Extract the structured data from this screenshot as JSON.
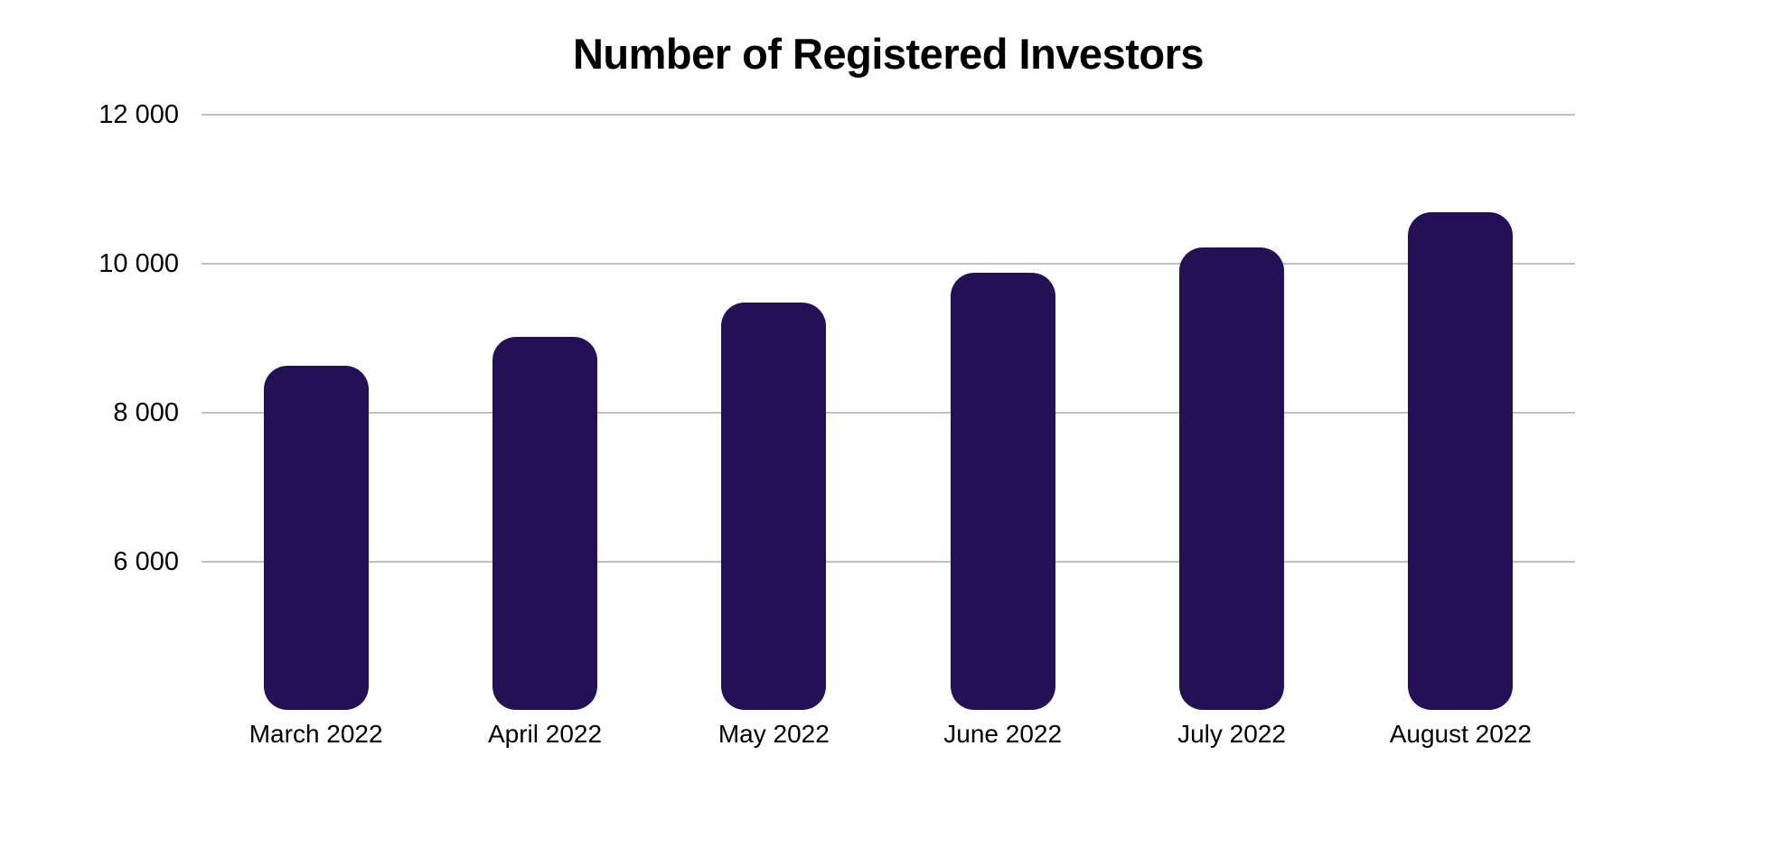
{
  "chart_data": {
    "type": "bar",
    "title": "Number of Registered Investors",
    "categories": [
      "March 2022",
      "April 2022",
      "May 2022",
      "June 2022",
      "July 2022",
      "August 2022"
    ],
    "values": [
      8630,
      9010,
      9480,
      9880,
      10220,
      10690
    ],
    "xlabel": "",
    "ylabel": "",
    "ylim": [
      4000,
      12000
    ],
    "yticks": [
      {
        "value": 12000,
        "label": "12 000"
      },
      {
        "value": 10000,
        "label": "10 000"
      },
      {
        "value": 8000,
        "label": "8 000"
      },
      {
        "value": 6000,
        "label": "6 000"
      }
    ],
    "grid": true,
    "legend": false,
    "colors": {
      "bar": "#241054",
      "gridline": "#bfbfbf",
      "text": "#000000",
      "background": "#ffffff"
    }
  }
}
